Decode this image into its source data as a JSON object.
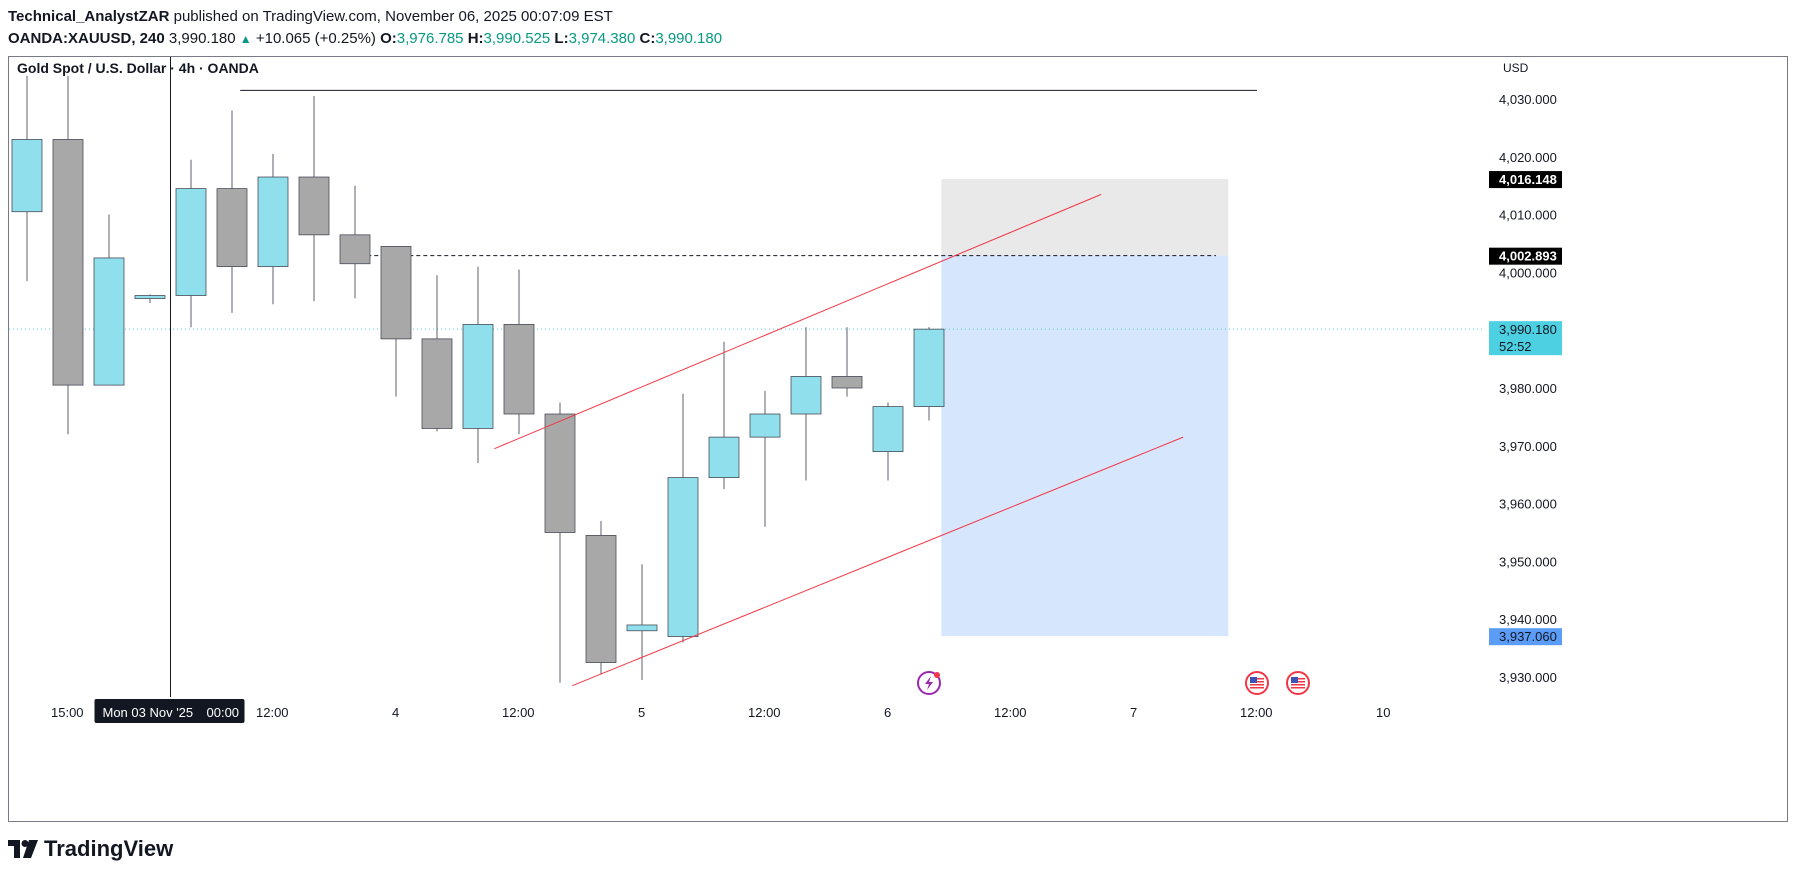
{
  "header": {
    "author": "Technical_AnalystZAR",
    "published": "published on TradingView.com, November 06, 2025 00:07:09 EST",
    "symbol": "OANDA:XAUUSD, 240",
    "price": "3,990.180",
    "change": "+10.065 (+0.25%)",
    "o_label": "O:",
    "o_value": "3,976.785",
    "h_label": "H:",
    "h_value": "3,990.525",
    "l_label": "L:",
    "l_value": "3,974.380",
    "c_label": "C:",
    "c_value": "3,990.180"
  },
  "colors": {
    "bull": "#8fdfec",
    "bear": "#a8a8a8",
    "wick": "#5d606b",
    "trend": "#f23645",
    "target_zone": "#d6e6fd",
    "stop_zone": "#e9e9e9",
    "last_price": "#4dd0e1",
    "target_label": "#5b9cf6",
    "black_label": "#000000"
  },
  "footer": {
    "brand": "TradingView"
  },
  "chart_data": {
    "type": "candlestick",
    "title": "Gold Spot / U.S. Dollar · 4h · OANDA",
    "currency": "USD",
    "y_range": [
      3925,
      4034
    ],
    "y_ticks": [
      4030,
      4020,
      4010,
      4000,
      3980,
      3970,
      3960,
      3950,
      3940,
      3930
    ],
    "y_tick_labels": [
      "4,030.000",
      "4,020.000",
      "4,010.000",
      "4,000.000",
      "3,980.000",
      "3,970.000",
      "3,960.000",
      "3,950.000",
      "3,940.000",
      "3,930.000"
    ],
    "x_range": [
      0,
      37
    ],
    "x_ticks": [
      {
        "label": "15:00",
        "x": 1
      },
      {
        "label": "12:00",
        "x": 6
      },
      {
        "label": "4",
        "x": 9
      },
      {
        "label": "12:00",
        "x": 12
      },
      {
        "label": "5",
        "x": 15
      },
      {
        "label": "12:00",
        "x": 18
      },
      {
        "label": "6",
        "x": 21
      },
      {
        "label": "12:00",
        "x": 24
      },
      {
        "label": "7",
        "x": 27
      },
      {
        "label": "12:00",
        "x": 30
      },
      {
        "label": "10",
        "x": 33
      }
    ],
    "crosshair": {
      "x": 3.5,
      "label": "Mon 03 Nov '25",
      "time": "00:00"
    },
    "candles": [
      {
        "x": 0,
        "o": 4010.5,
        "h": 4034,
        "l": 3998.5,
        "c": 4023
      },
      {
        "x": 1,
        "o": 4023,
        "h": 4034,
        "l": 3972,
        "c": 3980.5
      },
      {
        "x": 2,
        "o": 3980.5,
        "h": 4010,
        "l": 3980.5,
        "c": 4002.5
      },
      {
        "x": 3,
        "o": 3995.5,
        "h": 3996.2,
        "l": 3994.7,
        "c": 3996
      },
      {
        "x": 4,
        "o": 3996,
        "h": 4019.5,
        "l": 3990.5,
        "c": 4014.5
      },
      {
        "x": 5,
        "o": 4014.5,
        "h": 4028,
        "l": 3993,
        "c": 4001
      },
      {
        "x": 6,
        "o": 4001,
        "h": 4020.5,
        "l": 3994.5,
        "c": 4016.5
      },
      {
        "x": 7,
        "o": 4016.5,
        "h": 4030.5,
        "l": 3995,
        "c": 4006.5
      },
      {
        "x": 8,
        "o": 4006.5,
        "h": 4015,
        "l": 3995.5,
        "c": 4001.5
      },
      {
        "x": 9,
        "o": 4004.5,
        "h": 4004.5,
        "l": 3978.5,
        "c": 3988.5
      },
      {
        "x": 10,
        "o": 3988.5,
        "h": 3999.5,
        "l": 3972.5,
        "c": 3973
      },
      {
        "x": 11,
        "o": 3973,
        "h": 4001,
        "l": 3967,
        "c": 3991
      },
      {
        "x": 12,
        "o": 3991,
        "h": 4000.5,
        "l": 3972,
        "c": 3975.5
      },
      {
        "x": 13,
        "o": 3975.5,
        "h": 3977.5,
        "l": 3929,
        "c": 3955
      },
      {
        "x": 14,
        "o": 3954.5,
        "h": 3957,
        "l": 3930.5,
        "c": 3932.5
      },
      {
        "x": 15,
        "o": 3938,
        "h": 3949.5,
        "l": 3929.5,
        "c": 3939
      },
      {
        "x": 16,
        "o": 3937,
        "h": 3979,
        "l": 3936,
        "c": 3964.5
      },
      {
        "x": 17,
        "o": 3964.5,
        "h": 3988,
        "l": 3962.5,
        "c": 3971.5
      },
      {
        "x": 18,
        "o": 3971.5,
        "h": 3979.5,
        "l": 3956,
        "c": 3975.5
      },
      {
        "x": 19,
        "o": 3975.5,
        "h": 3990.5,
        "l": 3964,
        "c": 3982
      },
      {
        "x": 20,
        "o": 3982,
        "h": 3990.5,
        "l": 3978.5,
        "c": 3980
      },
      {
        "x": 21,
        "o": 3969,
        "h": 3977.5,
        "l": 3964,
        "c": 3976.785
      },
      {
        "x": 22,
        "o": 3976.785,
        "h": 3990.525,
        "l": 3974.38,
        "c": 3990.18
      }
    ],
    "horizontal_lines": [
      {
        "name": "resistance",
        "x1": 5.2,
        "x2": 30,
        "y": 4031.5,
        "style": "solid"
      },
      {
        "name": "entry",
        "x1": 8.3,
        "x2": 29,
        "y": 4002.893,
        "style": "dashed"
      }
    ],
    "last_price_line": {
      "y": 3990.18
    },
    "trendlines": [
      {
        "name": "channel-upper",
        "x1": 11.4,
        "y1": 3969.5,
        "x2": 26.2,
        "y2": 4013.5
      },
      {
        "name": "channel-lower",
        "x1": 13.3,
        "y1": 3928.5,
        "x2": 28.2,
        "y2": 3971.5
      }
    ],
    "position": {
      "x1": 22.3,
      "x2": 29.3,
      "stop": 4016.148,
      "entry": 4002.893,
      "target": 3937.06
    },
    "price_labels": [
      {
        "name": "stop-price-label",
        "y": 4016.148,
        "text": "4,016.148",
        "color_key": "black_label"
      },
      {
        "name": "entry-price-label",
        "y": 4002.893,
        "text": "4,002.893",
        "color_key": "black_label"
      },
      {
        "name": "last-price-label",
        "y": 3990.18,
        "text": "3,990.180",
        "sub": "52:52",
        "color_key": "last_price"
      },
      {
        "name": "target-price-label",
        "y": 3937.06,
        "text": "3,937.060",
        "color_key": "target_label"
      }
    ],
    "events": [
      {
        "name": "earnings-event-icon",
        "x": 22.0,
        "kind": "flash"
      },
      {
        "name": "us-event-icon",
        "x": 30.0,
        "kind": "flag"
      },
      {
        "name": "us-event-icon",
        "x": 31.0,
        "kind": "flag"
      }
    ]
  }
}
